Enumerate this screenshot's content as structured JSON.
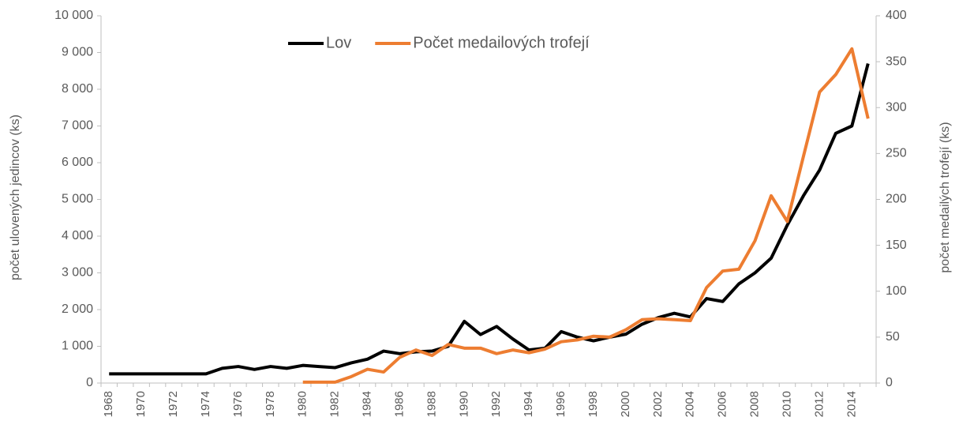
{
  "chart_data": {
    "type": "line",
    "categories": [
      "1968",
      null,
      "1970",
      null,
      "1972",
      null,
      "1974",
      null,
      "1976",
      null,
      "1978",
      null,
      "1980",
      null,
      "1982",
      null,
      "1984",
      null,
      "1986",
      null,
      "1988",
      null,
      "1990",
      null,
      "1992",
      null,
      "1994",
      null,
      "1996",
      null,
      "1998",
      null,
      "2000",
      null,
      "2002",
      null,
      "2004",
      null,
      "2006",
      null,
      "2008",
      null,
      "2010",
      null,
      "2012",
      null,
      "2014",
      null
    ],
    "series": [
      {
        "name": "Lov",
        "color": "#000000",
        "values": [
          250,
          250,
          250,
          250,
          250,
          250,
          250,
          400,
          450,
          370,
          450,
          400,
          480,
          450,
          420,
          550,
          650,
          870,
          800,
          850,
          870,
          1000,
          1680,
          1320,
          1540,
          1200,
          900,
          950,
          1400,
          1250,
          1150,
          1250,
          1330,
          1600,
          1780,
          1900,
          1800,
          2300,
          2220,
          2700,
          3000,
          3400,
          4300,
          5100,
          5800,
          6800,
          7000,
          8700
        ]
      },
      {
        "name": "Počet medailových trofejí",
        "color": "#ed7d31",
        "axis": "y2",
        "values": [
          null,
          null,
          null,
          null,
          null,
          null,
          null,
          null,
          null,
          null,
          null,
          null,
          1,
          1,
          1,
          7,
          15,
          12,
          28,
          36,
          30,
          42,
          38,
          38,
          32,
          36,
          33,
          37,
          45,
          47,
          51,
          50,
          58,
          69,
          70,
          69,
          68,
          104,
          122,
          124,
          155,
          204,
          176,
          247,
          317,
          336,
          364,
          288
        ]
      }
    ],
    "ylabel": "počet ulovených jedincov (ks)",
    "y2label": "počet medailých trofejí (ks)",
    "ylim": [
      0,
      10000
    ],
    "yticks": [
      0,
      {
        "value": 1000,
        "label": "1 000"
      },
      {
        "value": 2000,
        "label": "2 000"
      },
      {
        "value": 3000,
        "label": "3 000"
      },
      {
        "value": 4000,
        "label": "4 000"
      },
      {
        "value": 5000,
        "label": "5 000"
      },
      {
        "value": 6000,
        "label": "6 000"
      },
      {
        "value": 7000,
        "label": "7 000"
      },
      {
        "value": 8000,
        "label": "8 000"
      },
      {
        "value": 9000,
        "label": "9 000"
      },
      {
        "value": 10000,
        "label": "10 000"
      }
    ],
    "y2lim": [
      0,
      400
    ],
    "y2ticks": [
      0,
      50,
      100,
      150,
      200,
      250,
      300,
      350,
      400
    ],
    "legend": "top"
  }
}
